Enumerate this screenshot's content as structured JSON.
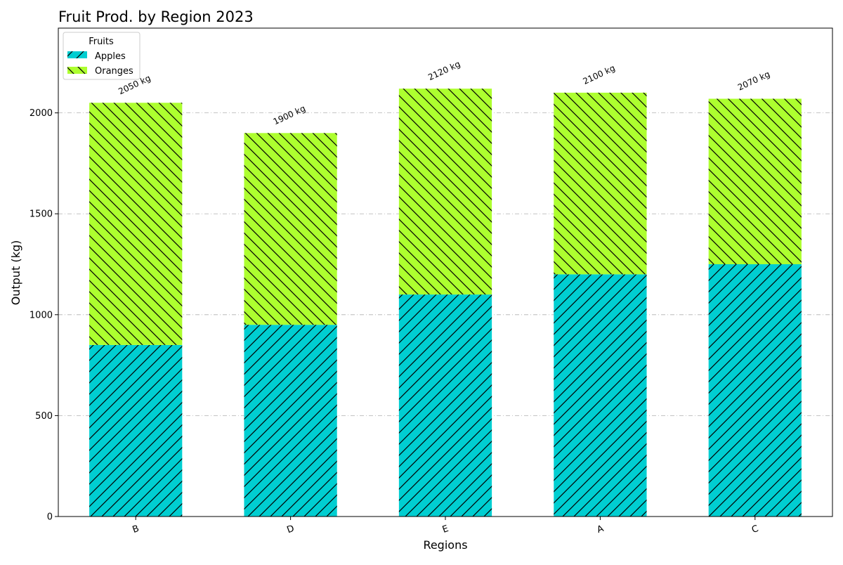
{
  "chart_data": {
    "type": "bar",
    "stacked": true,
    "title": "Fruit Prod. by Region 2023",
    "xlabel": "Regions",
    "ylabel": "Output (kg)",
    "categories": [
      "B",
      "D",
      "E",
      "A",
      "C"
    ],
    "series": [
      {
        "name": "Apples",
        "values": [
          850,
          950,
          1100,
          1200,
          1250
        ],
        "color": "#00CED1",
        "hatch": "forward-diagonal"
      },
      {
        "name": "Oranges",
        "values": [
          1200,
          950,
          1020,
          900,
          820
        ],
        "color": "#ADFF2F",
        "hatch": "back-diagonal"
      }
    ],
    "totals": [
      2050,
      1900,
      2120,
      2100,
      2070
    ],
    "total_labels": [
      "2050 kg",
      "1900 kg",
      "2120 kg",
      "2100 kg",
      "2070 kg"
    ],
    "ylim": [
      0,
      2420
    ],
    "yticks": [
      0,
      500,
      1000,
      1500,
      2000
    ],
    "grid": "horizontal dash-dot",
    "legend": {
      "title": "Fruits",
      "placement": "top-left"
    }
  }
}
